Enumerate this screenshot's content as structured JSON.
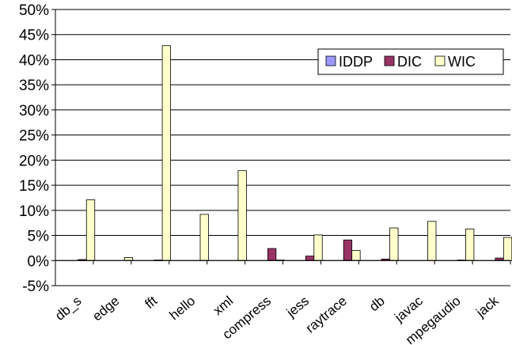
{
  "chart_data": {
    "type": "bar",
    "categories": [
      "db_s",
      "edge",
      "fft",
      "hello",
      "xml",
      "compress",
      "jess",
      "raytrace",
      "db",
      "javac",
      "mpegaudio",
      "jack"
    ],
    "series": [
      {
        "name": "IDDP",
        "color": "#9999ff",
        "values": [
          0,
          0,
          0,
          0,
          0,
          0,
          0,
          0,
          0,
          0,
          0,
          0
        ]
      },
      {
        "name": "DIC",
        "color": "#993366",
        "values": [
          0.2,
          0,
          0.1,
          0,
          0,
          2.4,
          0.9,
          4.1,
          0.3,
          0,
          0.1,
          0.5
        ]
      },
      {
        "name": "WIC",
        "color": "#ffffcc",
        "values": [
          12.1,
          0.6,
          42.8,
          9.2,
          17.9,
          0.1,
          5.1,
          2.0,
          6.5,
          7.8,
          6.3,
          4.6
        ]
      }
    ],
    "yticks": [
      "-5%",
      "0%",
      "5%",
      "10%",
      "15%",
      "20%",
      "25%",
      "30%",
      "35%",
      "40%",
      "45%",
      "50%"
    ],
    "ylim": [
      -5,
      50
    ],
    "unit": "%",
    "legend_position": "top-right",
    "gridlines": true
  }
}
